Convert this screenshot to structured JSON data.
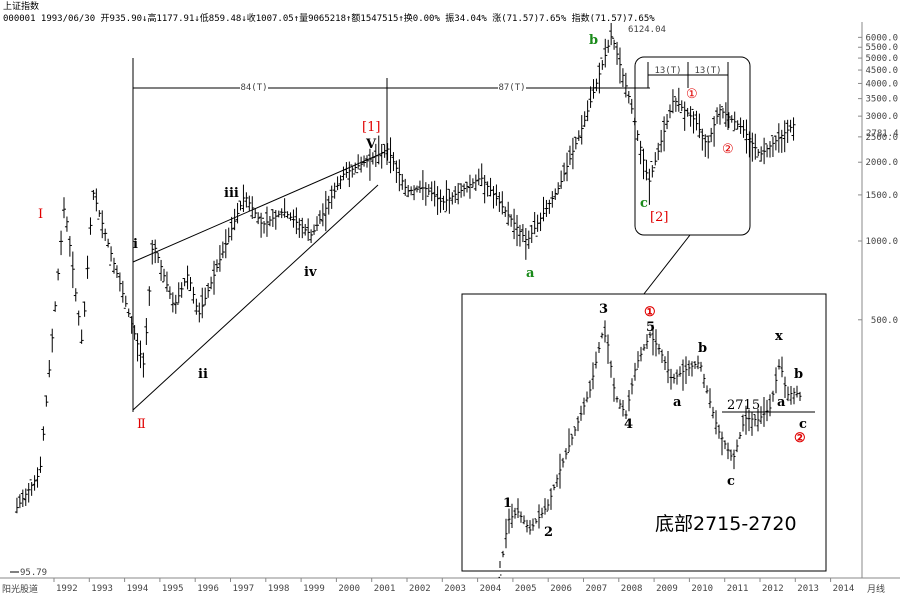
{
  "header": {
    "title": "上证指数",
    "info": "000001 1993/06/30 开935.90↓高1177.91↓低859.48↓收1007.05↑量9065218↑额1547515↑换0.00% 振34.04% 涨(71.57)7.65% 指数(71.57)7.65%"
  },
  "footer": {
    "source": "阳光股道",
    "period": "月线"
  },
  "chart_data": {
    "type": "candlestick",
    "x_axis": {
      "type": "year",
      "tick_labels": [
        "1992",
        "1993",
        "1994",
        "1995",
        "1996",
        "1997",
        "1998",
        "1999",
        "2000",
        "2001",
        "2002",
        "2003",
        "2004",
        "2005",
        "2006",
        "2007",
        "2008",
        "2009",
        "2010",
        "2011",
        "2012",
        "2013",
        "2014"
      ]
    },
    "y_axis": {
      "scale": "log",
      "tick_labels": [
        "6000.0",
        "5500.0",
        "5000.0",
        "4500.0",
        "4000.0",
        "3500.0",
        "3000.0",
        "2500.0",
        "2000.0",
        "1500.0",
        "1000.0",
        "500.0"
      ],
      "current_value": "2781.4"
    },
    "price_path": [
      {
        "x": 1990.95,
        "y": 95.79
      },
      {
        "x": 1991.6,
        "y": 130
      },
      {
        "x": 1992.3,
        "y": 1400
      },
      {
        "x": 1992.8,
        "y": 400
      },
      {
        "x": 1993.1,
        "y": 1550
      },
      {
        "x": 1994.55,
        "y": 333
      },
      {
        "x": 1994.8,
        "y": 1000
      },
      {
        "x": 1995.4,
        "y": 560
      },
      {
        "x": 1995.8,
        "y": 750
      },
      {
        "x": 1996.1,
        "y": 520
      },
      {
        "x": 1997.4,
        "y": 1500
      },
      {
        "x": 1997.9,
        "y": 1150
      },
      {
        "x": 1998.5,
        "y": 1300
      },
      {
        "x": 1999.3,
        "y": 1050
      },
      {
        "x": 2000.2,
        "y": 1800
      },
      {
        "x": 2001.45,
        "y": 2245
      },
      {
        "x": 2002.0,
        "y": 1550
      },
      {
        "x": 2002.5,
        "y": 1600
      },
      {
        "x": 2003.0,
        "y": 1400
      },
      {
        "x": 2004.1,
        "y": 1750
      },
      {
        "x": 2005.4,
        "y": 998
      },
      {
        "x": 2006.3,
        "y": 1600
      },
      {
        "x": 2007.0,
        "y": 2800
      },
      {
        "x": 2007.8,
        "y": 6124.04
      },
      {
        "x": 2008.3,
        "y": 3500
      },
      {
        "x": 2008.85,
        "y": 1664
      },
      {
        "x": 2009.55,
        "y": 3478
      },
      {
        "x": 2010.15,
        "y": 2900
      },
      {
        "x": 2010.5,
        "y": 2320
      },
      {
        "x": 2010.85,
        "y": 3186
      },
      {
        "x": 2011.5,
        "y": 2700
      },
      {
        "x": 2012.0,
        "y": 2132
      },
      {
        "x": 2012.5,
        "y": 2450
      },
      {
        "x": 2012.95,
        "y": 2781.4
      }
    ],
    "annotations": {
      "high": "6124.04",
      "low": "95.79",
      "cycle_84": "84(T)",
      "cycle_87": "87(T)",
      "cycle_13a": "13(T)",
      "cycle_13b": "13(T)",
      "wave_I": "I",
      "wave_II": "Ⅱ",
      "wave_i": "i",
      "wave_ii": "ii",
      "wave_iii": "iii",
      "wave_iv": "iv",
      "wave_v": "V",
      "wave_1_bracket": "[1]",
      "wave_a": "a",
      "wave_b": "b",
      "wave_c": "c",
      "wave_2_bracket": "[2]",
      "wave_circle1": "①",
      "wave_circle2": "②"
    },
    "inset": {
      "title": "底部2715-2720",
      "level": "2715",
      "labels": [
        "1",
        "2",
        "3",
        "4",
        "5",
        "①",
        "a",
        "b",
        "c",
        "x",
        "a",
        "b",
        "c",
        "②"
      ]
    }
  }
}
